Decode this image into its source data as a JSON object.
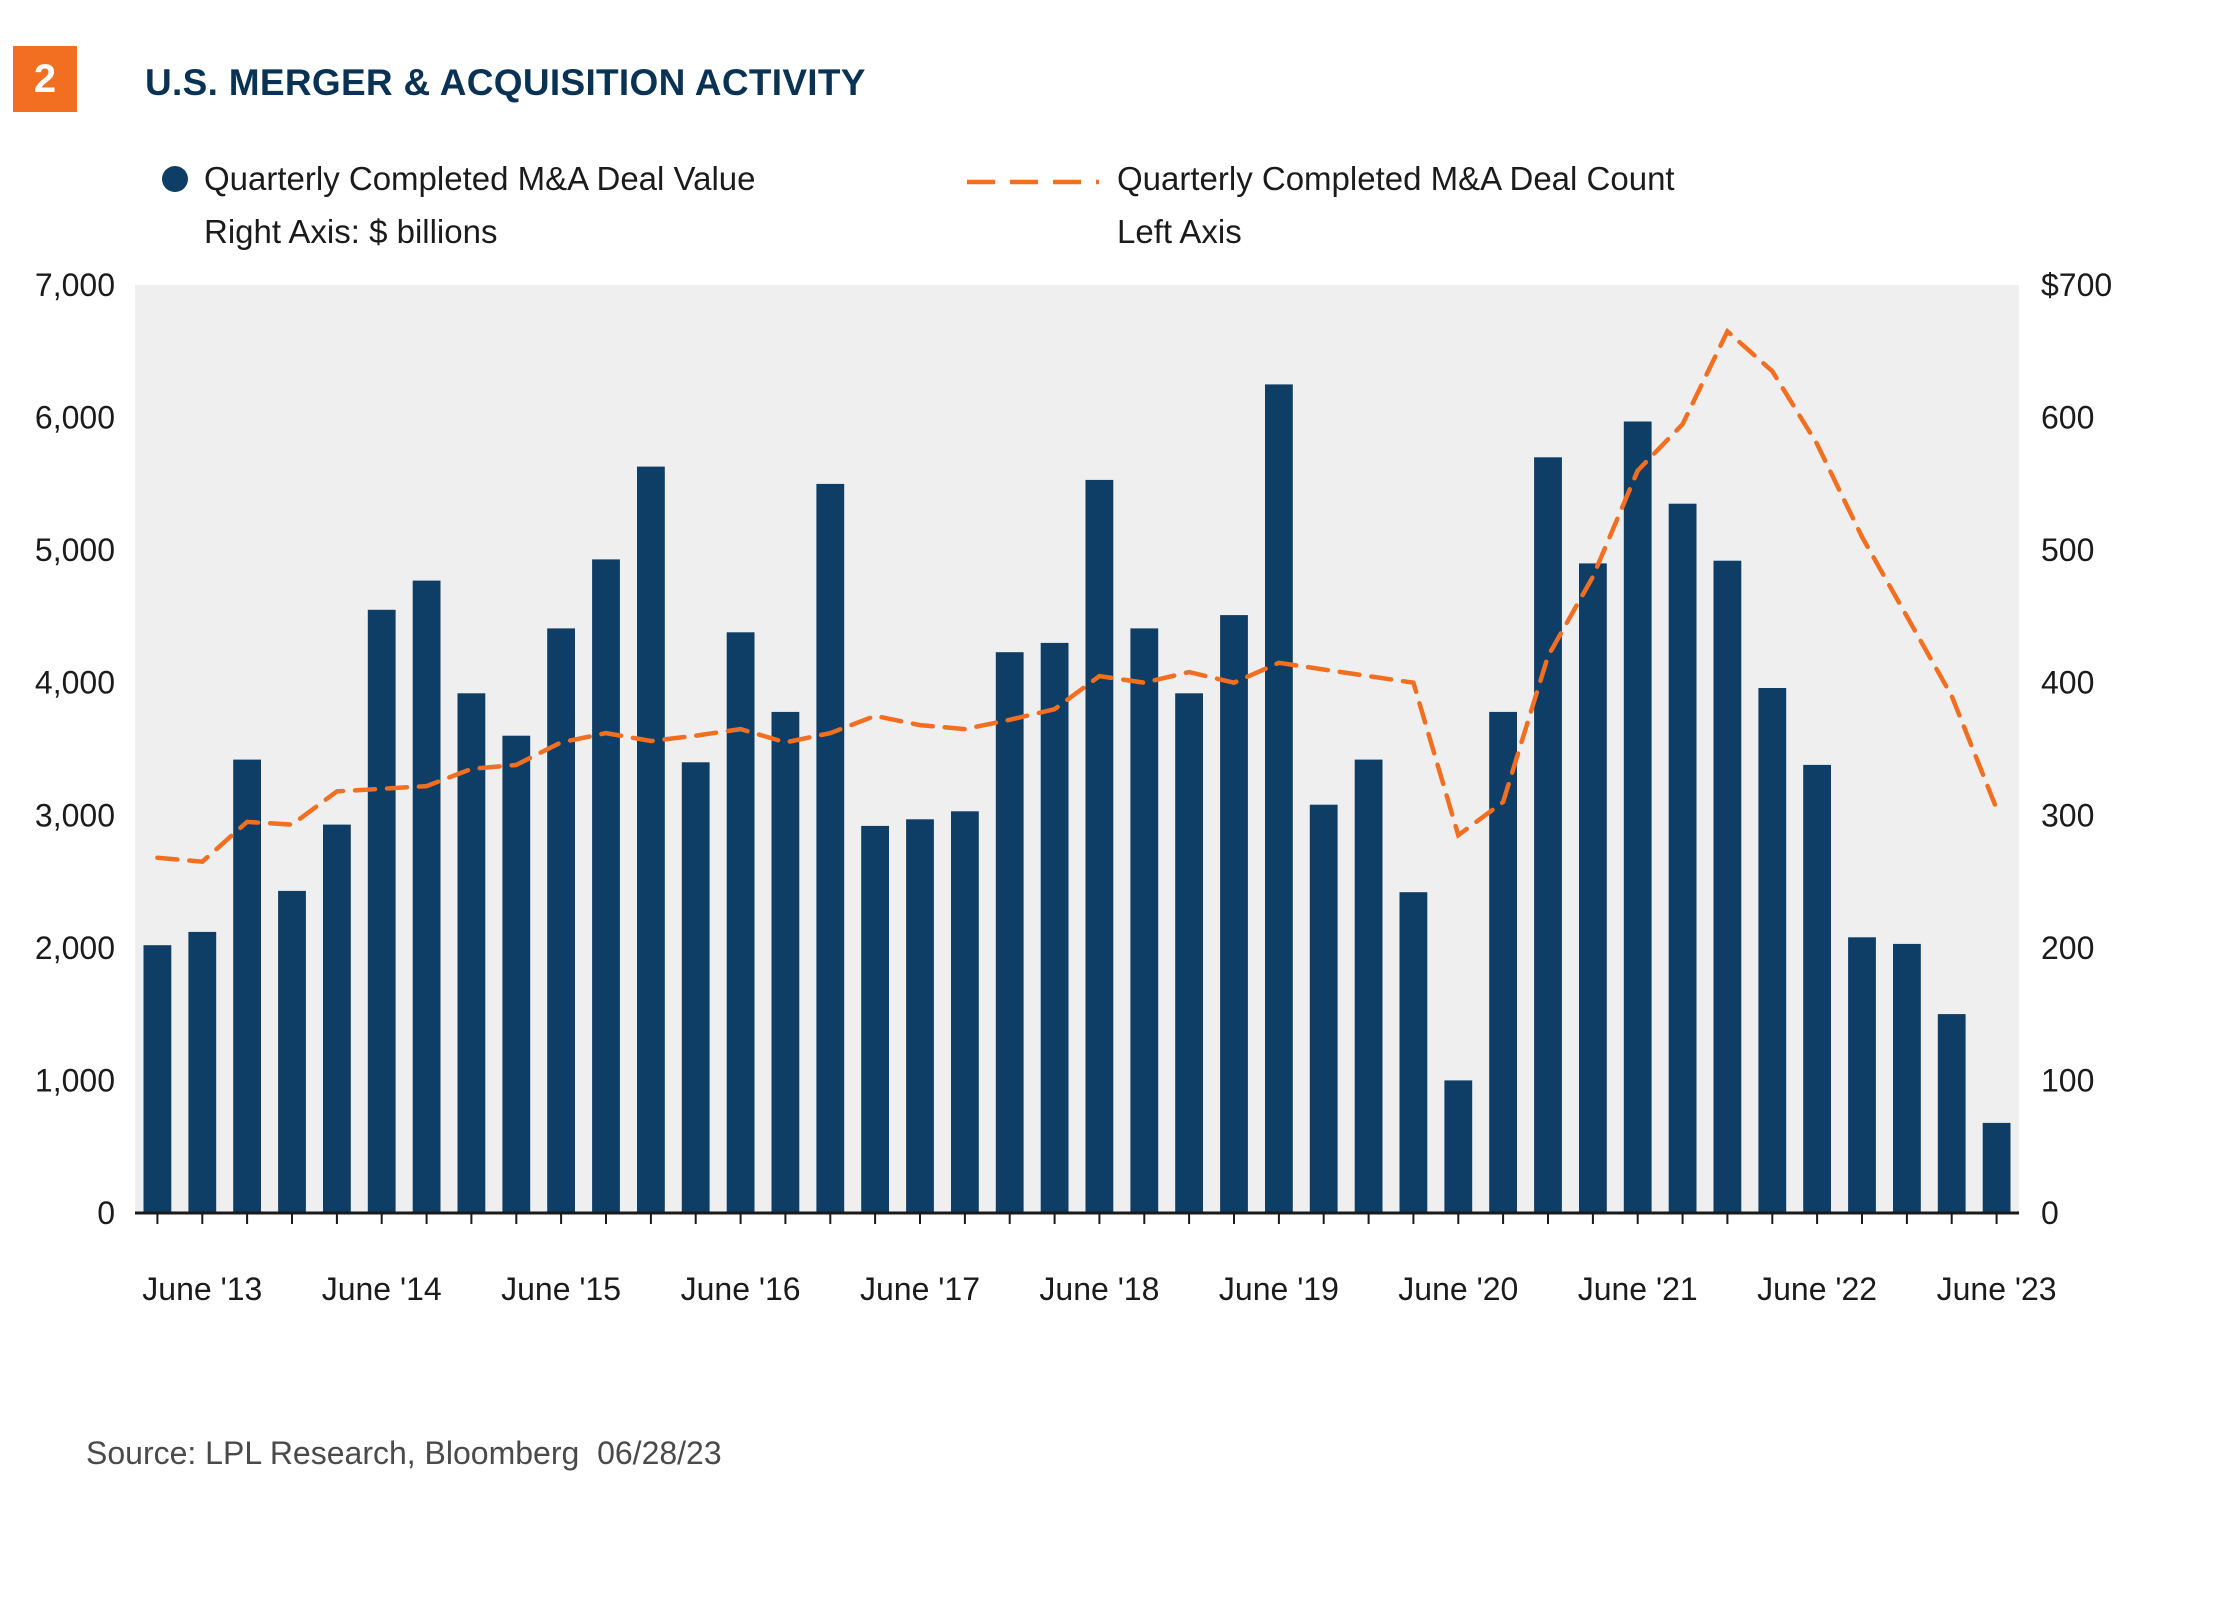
{
  "badge": {
    "number": "2"
  },
  "title": "U.S. MERGER & ACQUISITION ACTIVITY",
  "legend": {
    "value": {
      "line1": "Quarterly Completed M&A Deal Value",
      "line2": "Right Axis: $ billions"
    },
    "count": {
      "line1": "Quarterly Completed M&A Deal Count",
      "line2": "Left Axis"
    }
  },
  "source": "Source: LPL Research, Bloomberg  06/28/23",
  "colors": {
    "navy": "#0E3E65",
    "title_navy": "#0A3254",
    "orange": "#F26F21",
    "plot_bg": "#EFEFF0",
    "axis_line": "#1a1a1a",
    "label_text": "#1b1b1b"
  },
  "chart_data": {
    "type": "bar+line",
    "title": "U.S. MERGER & ACQUISITION ACTIVITY",
    "quarters": [
      "Mar '13",
      "Jun '13",
      "Sep '13",
      "Dec '13",
      "Mar '14",
      "Jun '14",
      "Sep '14",
      "Dec '14",
      "Mar '15",
      "Jun '15",
      "Sep '15",
      "Dec '15",
      "Mar '16",
      "Jun '16",
      "Sep '16",
      "Dec '16",
      "Mar '17",
      "Jun '17",
      "Sep '17",
      "Dec '17",
      "Mar '18",
      "Jun '18",
      "Sep '18",
      "Dec '18",
      "Mar '19",
      "Jun '19",
      "Sep '19",
      "Dec '19",
      "Mar '20",
      "Jun '20",
      "Sep '20",
      "Dec '20",
      "Mar '21",
      "Jun '21",
      "Sep '21",
      "Dec '21",
      "Mar '22",
      "Jun '22",
      "Sep '22",
      "Dec '22",
      "Mar '23",
      "Jun '23"
    ],
    "x_tick_labels": [
      "June '13",
      "June '14",
      "June '15",
      "June '16",
      "June '17",
      "June '18",
      "June '19",
      "June '20",
      "June '21",
      "June '22",
      "June '23"
    ],
    "x_tick_label_positions": [
      1,
      5,
      9,
      13,
      17,
      21,
      25,
      29,
      33,
      37,
      41
    ],
    "series": [
      {
        "name": "Quarterly Completed M&A Deal Value",
        "type": "bar",
        "axis": "right",
        "units": "$ billions",
        "color": "#0E3E65",
        "values": [
          202,
          212,
          342,
          243,
          293,
          455,
          477,
          392,
          360,
          441,
          493,
          563,
          340,
          438,
          378,
          550,
          292,
          297,
          303,
          423,
          430,
          553,
          441,
          392,
          451,
          625,
          308,
          342,
          242,
          100,
          378,
          570,
          490,
          597,
          535,
          492,
          396,
          338,
          208,
          203,
          150,
          68
        ]
      },
      {
        "name": "Quarterly Completed M&A Deal Count",
        "type": "line",
        "style": "dashed",
        "axis": "left",
        "units": "deals",
        "color": "#F26F21",
        "values": [
          2680,
          2650,
          2950,
          2930,
          3180,
          3200,
          3220,
          3350,
          3380,
          3550,
          3620,
          3560,
          3600,
          3650,
          3550,
          3620,
          3750,
          3680,
          3650,
          3720,
          3800,
          4050,
          4000,
          4080,
          4000,
          4150,
          4100,
          4050,
          4000,
          2850,
          3100,
          4200,
          4800,
          5600,
          5950,
          6650,
          6350,
          5800,
          5100,
          4500,
          3900,
          3050
        ]
      }
    ],
    "left_axis": {
      "min": 0,
      "max": 7000,
      "ticks": [
        0,
        1000,
        2000,
        3000,
        4000,
        5000,
        6000,
        7000
      ],
      "tick_labels": [
        "0",
        "1,000",
        "2,000",
        "3,000",
        "4,000",
        "5,000",
        "6,000",
        "7,000"
      ]
    },
    "right_axis": {
      "min": 0,
      "max": 700,
      "ticks": [
        0,
        100,
        200,
        300,
        400,
        500,
        600,
        700
      ],
      "tick_labels": [
        "0",
        "100",
        "200",
        "300",
        "400",
        "500",
        "600",
        "$700"
      ]
    },
    "grid": "off",
    "legend_position": "top",
    "plot_bg": "#EFEFF0"
  }
}
